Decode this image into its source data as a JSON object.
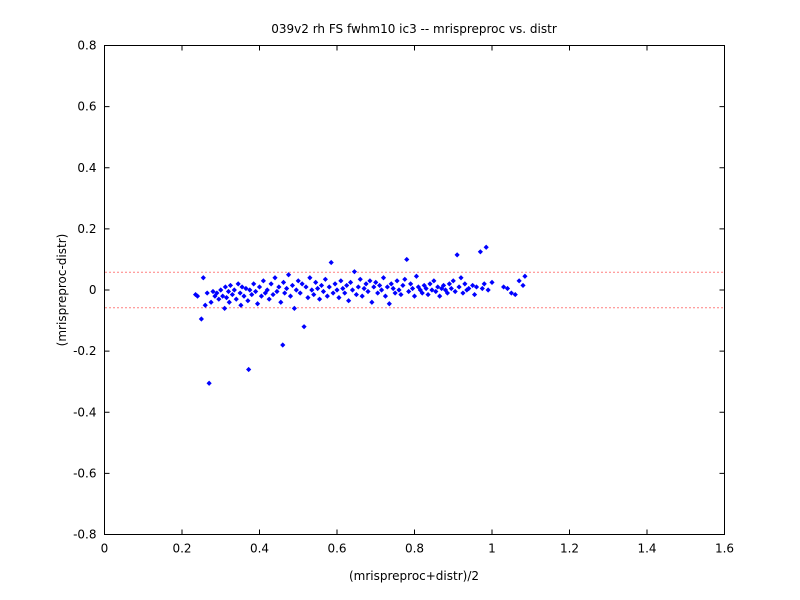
{
  "chart_data": {
    "type": "scatter",
    "title": "039v2 rh FS fwhm10 ic3 -- mrispreproc vs. distr",
    "xlabel": "(mrispreproc+distr)/2",
    "ylabel": "(mrispreproc-distr)",
    "xlim": [
      0,
      1.6
    ],
    "ylim": [
      -0.8,
      0.8
    ],
    "xticks": [
      0,
      0.2,
      0.4,
      0.6,
      0.8,
      1,
      1.2,
      1.4,
      1.6
    ],
    "xtick_labels": [
      "0",
      "0.2",
      "0.4",
      "0.6",
      "0.8",
      "1",
      "1.2",
      "1.4",
      "1.6"
    ],
    "yticks": [
      0.8,
      0.6,
      0.4,
      0.2,
      0,
      -0.2,
      -0.4,
      -0.6,
      -0.8
    ],
    "ytick_labels": [
      "0.8",
      "0.6",
      "0.4",
      "0.2",
      "0",
      "-0.2",
      "-0.4",
      "-0.6",
      "-0.8"
    ],
    "grid": false,
    "marker_color": "#0000ff",
    "limit_lines": [
      {
        "y": 0.058,
        "color": "#ff0000",
        "style": "dotted"
      },
      {
        "y": -0.058,
        "color": "#ff0000",
        "style": "dotted"
      }
    ],
    "points": [
      [
        0.235,
        -0.015
      ],
      [
        0.24,
        -0.02
      ],
      [
        0.25,
        -0.095
      ],
      [
        0.255,
        0.04
      ],
      [
        0.26,
        -0.05
      ],
      [
        0.265,
        -0.01
      ],
      [
        0.27,
        -0.305
      ],
      [
        0.275,
        -0.04
      ],
      [
        0.28,
        -0.005
      ],
      [
        0.285,
        -0.02
      ],
      [
        0.29,
        -0.01
      ],
      [
        0.295,
        -0.03
      ],
      [
        0.3,
        0.0
      ],
      [
        0.305,
        -0.02
      ],
      [
        0.31,
        -0.06
      ],
      [
        0.312,
        0.01
      ],
      [
        0.315,
        -0.025
      ],
      [
        0.32,
        -0.005
      ],
      [
        0.322,
        -0.04
      ],
      [
        0.325,
        0.015
      ],
      [
        0.33,
        -0.015
      ],
      [
        0.335,
        0.0
      ],
      [
        0.34,
        -0.03
      ],
      [
        0.345,
        0.02
      ],
      [
        0.35,
        -0.01
      ],
      [
        0.352,
        -0.05
      ],
      [
        0.355,
        0.01
      ],
      [
        0.36,
        -0.02
      ],
      [
        0.365,
        0.005
      ],
      [
        0.37,
        -0.035
      ],
      [
        0.372,
        -0.26
      ],
      [
        0.375,
        0.0
      ],
      [
        0.38,
        -0.015
      ],
      [
        0.385,
        0.02
      ],
      [
        0.39,
        -0.005
      ],
      [
        0.395,
        -0.045
      ],
      [
        0.4,
        0.01
      ],
      [
        0.405,
        -0.02
      ],
      [
        0.41,
        0.03
      ],
      [
        0.415,
        -0.01
      ],
      [
        0.42,
        0.0
      ],
      [
        0.425,
        -0.03
      ],
      [
        0.43,
        0.02
      ],
      [
        0.435,
        -0.015
      ],
      [
        0.44,
        0.04
      ],
      [
        0.445,
        -0.005
      ],
      [
        0.45,
        0.01
      ],
      [
        0.455,
        -0.04
      ],
      [
        0.46,
        -0.18
      ],
      [
        0.462,
        0.025
      ],
      [
        0.465,
        -0.01
      ],
      [
        0.47,
        0.005
      ],
      [
        0.475,
        0.05
      ],
      [
        0.48,
        -0.02
      ],
      [
        0.485,
        0.015
      ],
      [
        0.49,
        -0.06
      ],
      [
        0.495,
        0.0
      ],
      [
        0.5,
        0.03
      ],
      [
        0.505,
        -0.01
      ],
      [
        0.51,
        0.02
      ],
      [
        0.515,
        -0.12
      ],
      [
        0.52,
        0.01
      ],
      [
        0.525,
        -0.025
      ],
      [
        0.53,
        0.04
      ],
      [
        0.535,
        0.0
      ],
      [
        0.54,
        -0.015
      ],
      [
        0.545,
        0.025
      ],
      [
        0.55,
        0.005
      ],
      [
        0.555,
        -0.03
      ],
      [
        0.56,
        0.015
      ],
      [
        0.565,
        -0.005
      ],
      [
        0.57,
        0.035
      ],
      [
        0.575,
        -0.02
      ],
      [
        0.58,
        0.01
      ],
      [
        0.585,
        0.09
      ],
      [
        0.59,
        -0.01
      ],
      [
        0.595,
        0.02
      ],
      [
        0.6,
        0.0
      ],
      [
        0.605,
        -0.025
      ],
      [
        0.61,
        0.03
      ],
      [
        0.615,
        0.005
      ],
      [
        0.62,
        -0.01
      ],
      [
        0.625,
        0.015
      ],
      [
        0.63,
        -0.035
      ],
      [
        0.635,
        0.025
      ],
      [
        0.64,
        0.0
      ],
      [
        0.645,
        0.06
      ],
      [
        0.65,
        -0.015
      ],
      [
        0.655,
        0.01
      ],
      [
        0.66,
        0.035
      ],
      [
        0.665,
        -0.02
      ],
      [
        0.67,
        0.005
      ],
      [
        0.675,
        0.02
      ],
      [
        0.68,
        -0.005
      ],
      [
        0.685,
        0.03
      ],
      [
        0.69,
        -0.04
      ],
      [
        0.695,
        0.01
      ],
      [
        0.7,
        0.025
      ],
      [
        0.705,
        -0.01
      ],
      [
        0.71,
        0.015
      ],
      [
        0.715,
        0.0
      ],
      [
        0.72,
        0.04
      ],
      [
        0.725,
        -0.02
      ],
      [
        0.73,
        0.01
      ],
      [
        0.735,
        -0.045
      ],
      [
        0.74,
        0.02
      ],
      [
        0.745,
        0.005
      ],
      [
        0.75,
        -0.01
      ],
      [
        0.755,
        0.03
      ],
      [
        0.76,
        0.0
      ],
      [
        0.765,
        -0.015
      ],
      [
        0.77,
        0.015
      ],
      [
        0.775,
        0.035
      ],
      [
        0.78,
        0.1
      ],
      [
        0.785,
        -0.005
      ],
      [
        0.79,
        0.02
      ],
      [
        0.795,
        0.005
      ],
      [
        0.8,
        -0.02
      ],
      [
        0.805,
        0.045
      ],
      [
        0.81,
        0.01
      ],
      [
        0.815,
        0.0
      ],
      [
        0.82,
        -0.01
      ],
      [
        0.825,
        0.015
      ],
      [
        0.83,
        0.005
      ],
      [
        0.835,
        -0.015
      ],
      [
        0.84,
        0.02
      ],
      [
        0.845,
        0.0
      ],
      [
        0.85,
        0.03
      ],
      [
        0.855,
        -0.005
      ],
      [
        0.86,
        0.01
      ],
      [
        0.865,
        -0.02
      ],
      [
        0.87,
        0.005
      ],
      [
        0.875,
        0.015
      ],
      [
        0.88,
        0.0
      ],
      [
        0.885,
        -0.01
      ],
      [
        0.89,
        0.02
      ],
      [
        0.895,
        0.005
      ],
      [
        0.9,
        0.03
      ],
      [
        0.905,
        -0.005
      ],
      [
        0.91,
        0.115
      ],
      [
        0.915,
        0.01
      ],
      [
        0.92,
        0.04
      ],
      [
        0.925,
        -0.01
      ],
      [
        0.93,
        0.02
      ],
      [
        0.935,
        0.0
      ],
      [
        0.94,
        0.005
      ],
      [
        0.95,
        0.015
      ],
      [
        0.955,
        -0.015
      ],
      [
        0.96,
        0.01
      ],
      [
        0.97,
        0.125
      ],
      [
        0.975,
        0.005
      ],
      [
        0.98,
        0.02
      ],
      [
        0.985,
        0.14
      ],
      [
        0.99,
        0.0
      ],
      [
        1.0,
        0.025
      ],
      [
        1.03,
        0.01
      ],
      [
        1.04,
        0.005
      ],
      [
        1.05,
        -0.01
      ],
      [
        1.06,
        -0.015
      ],
      [
        1.07,
        0.03
      ],
      [
        1.08,
        0.015
      ],
      [
        1.085,
        0.045
      ]
    ]
  }
}
